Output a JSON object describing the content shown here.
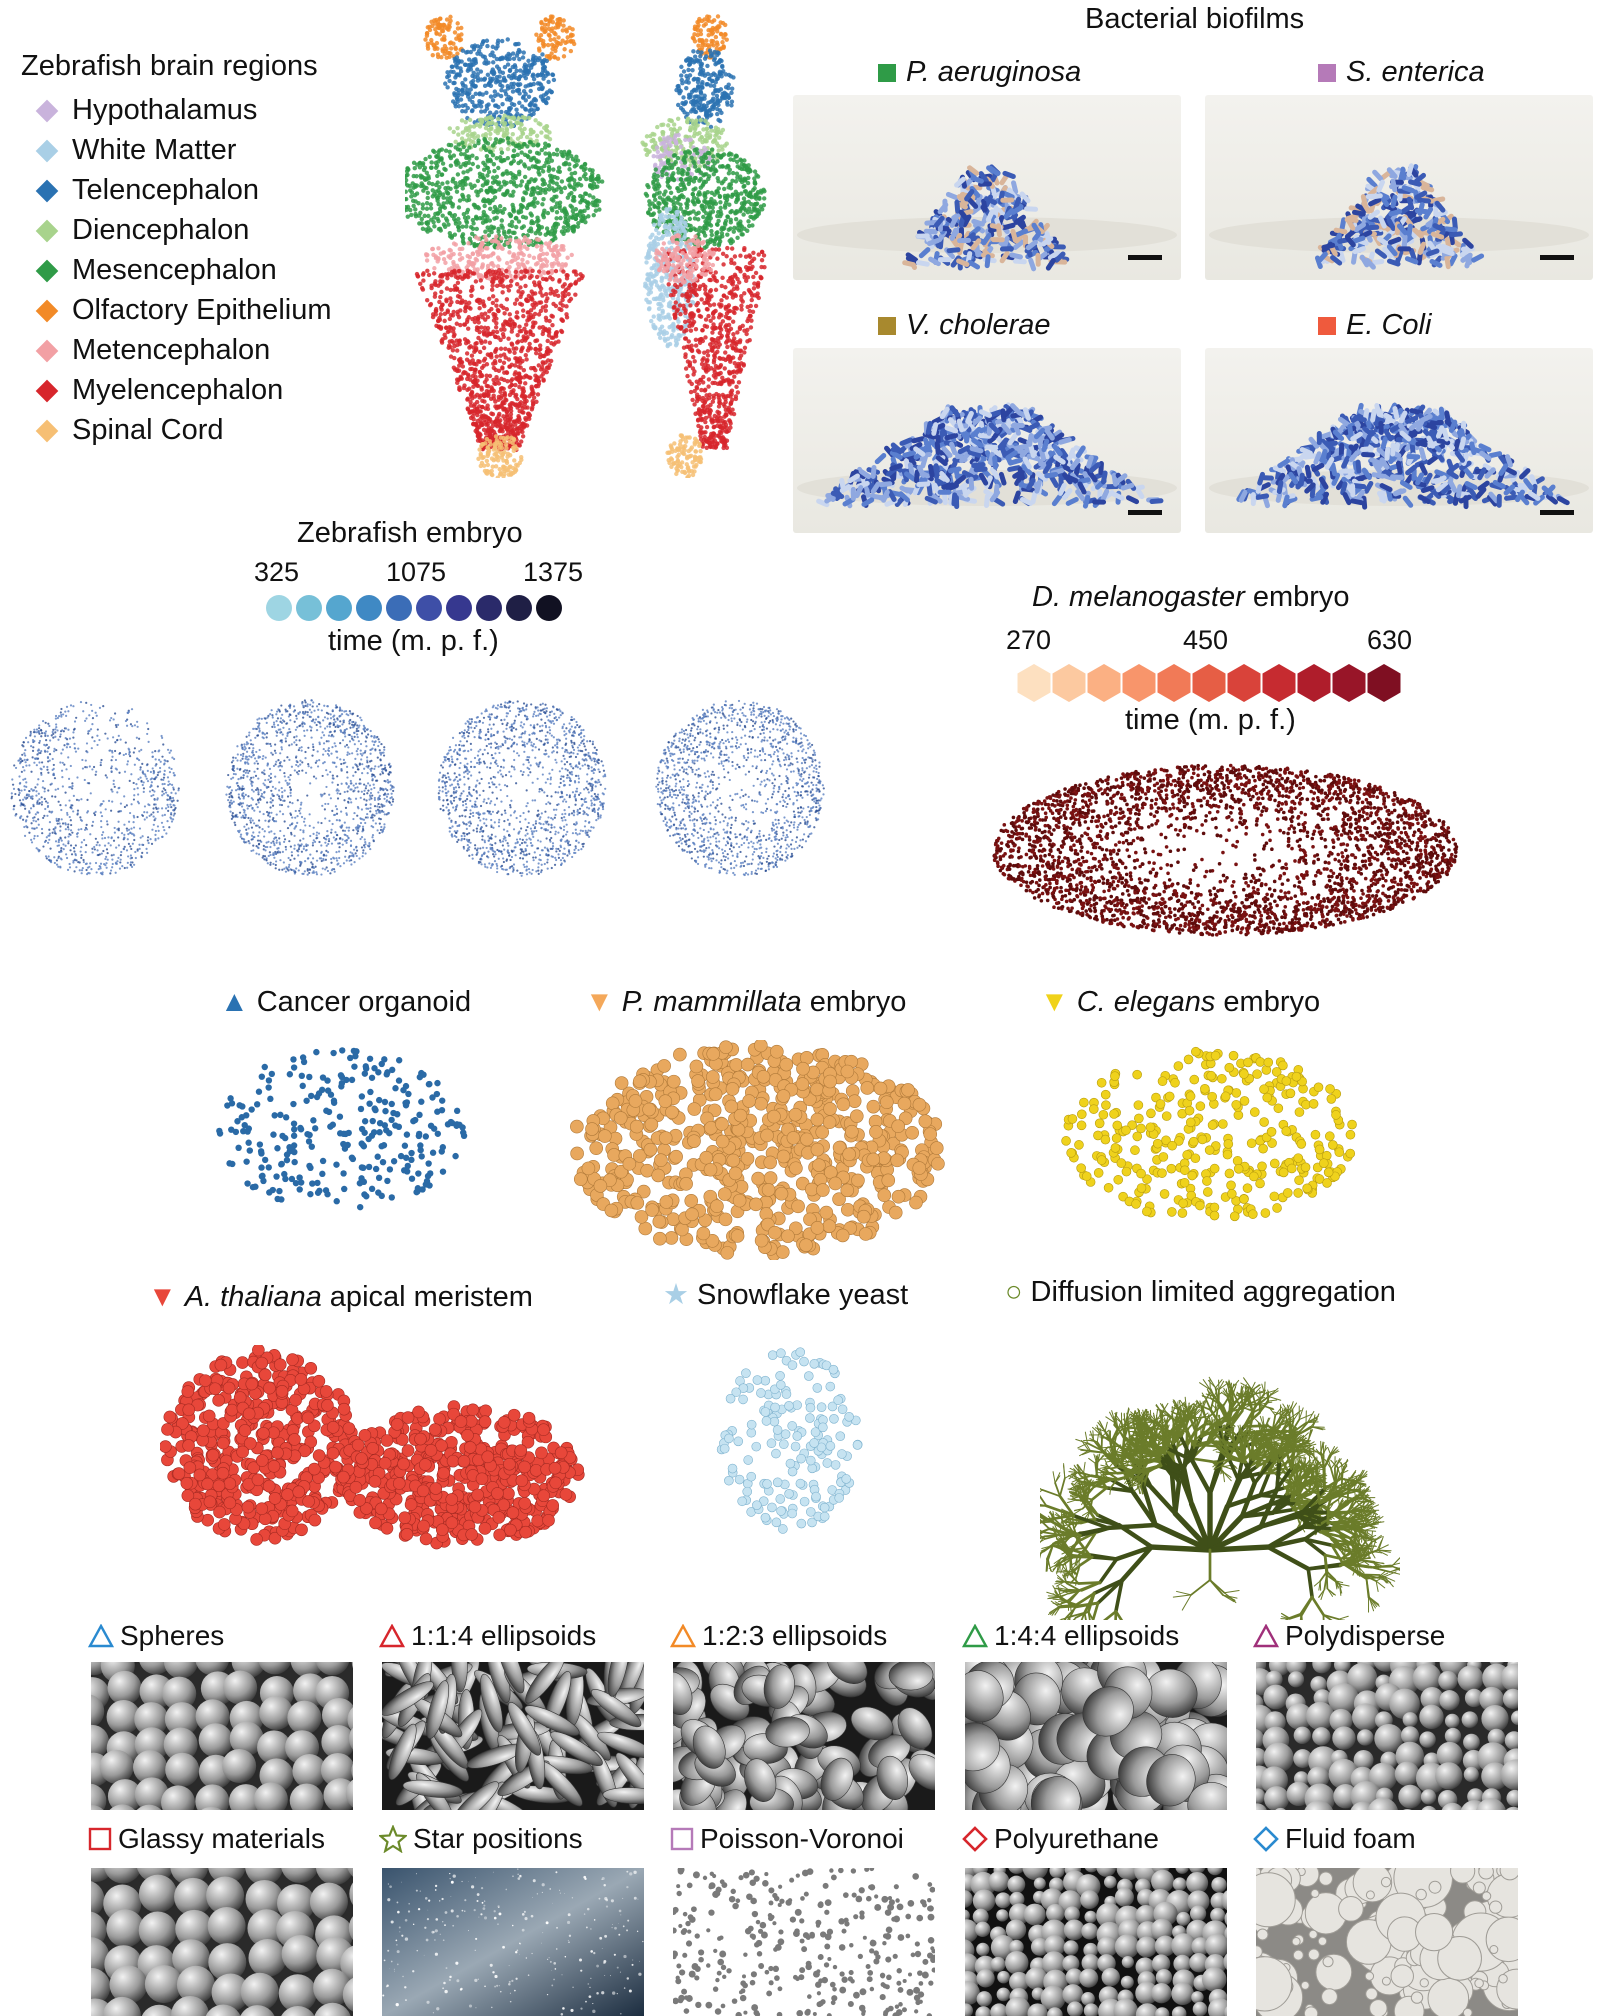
{
  "brain": {
    "legend_title": "Zebrafish brain regions",
    "regions": [
      {
        "label": "Hypothalamus",
        "color": "#c9b3dc"
      },
      {
        "label": "White Matter",
        "color": "#a9cfe6"
      },
      {
        "label": "Telencephalon",
        "color": "#2a72b2"
      },
      {
        "label": "Diencephalon",
        "color": "#a8d38c"
      },
      {
        "label": "Mesencephalon",
        "color": "#2f9b47"
      },
      {
        "label": "Olfactory Epithelium",
        "color": "#f28a27"
      },
      {
        "label": "Metencephalon",
        "color": "#f2a0a4"
      },
      {
        "label": "Myelencephalon",
        "color": "#d7262c"
      },
      {
        "label": "Spinal Cord",
        "color": "#f6bf74"
      }
    ]
  },
  "biofilms": {
    "title": "Bacterial biofilms",
    "panels": [
      {
        "name": "P. aeruginosa",
        "color": "#2f9b47"
      },
      {
        "name": "S. enterica",
        "color": "#b57ab8"
      },
      {
        "name": "V. cholerae",
        "color": "#a8892e"
      },
      {
        "name": "E. Coli",
        "color": "#ef5a3d"
      }
    ]
  },
  "zebrafish_embryo": {
    "title": "Zebrafish embryo",
    "ticks": [
      "325",
      "1075",
      "1375"
    ],
    "time_label": "time (m. p. f.)",
    "colors": [
      "#9ed5e3",
      "#77c0d8",
      "#55a6cf",
      "#3f89c4",
      "#3b6db7",
      "#3e4fa7",
      "#36388f",
      "#2a2a6a",
      "#1f1f45",
      "#111122"
    ]
  },
  "drosophila": {
    "title_italic": "D. melanogaster",
    "title_rest": " embryo",
    "ticks": [
      "270",
      "450",
      "630"
    ],
    "time_label": "time (m. p. f.)",
    "colors": [
      "#fde0c0",
      "#fcc9a0",
      "#fbb083",
      "#f8956b",
      "#f17a57",
      "#e65e45",
      "#d9433a",
      "#c62b30",
      "#af1d2b",
      "#981528",
      "#7f0f22"
    ]
  },
  "organisms": [
    {
      "key": "cancer",
      "marker": "▲",
      "color": "#2a72b2",
      "label_italic": "",
      "label_rest": "Cancer organoid"
    },
    {
      "key": "mammillata",
      "marker": "▼",
      "color": "#f4a85a",
      "label_italic": "P. mammillata",
      "label_rest": " embryo"
    },
    {
      "key": "elegans",
      "marker": "▼",
      "color": "#f0d21a",
      "label_italic": "C. elegans",
      "label_rest": " embryo"
    },
    {
      "key": "thaliana",
      "marker": "▼",
      "color": "#e8473a",
      "label_italic": "A. thaliana",
      "label_rest": " apical meristem"
    },
    {
      "key": "yeast",
      "marker": "★",
      "color": "#a9cfe6",
      "label_italic": "",
      "label_rest": "Snowflake yeast"
    },
    {
      "key": "dla",
      "marker": "○",
      "color": "#6b8a2a",
      "label_italic": "",
      "label_rest": "Diffusion limited aggregation"
    }
  ],
  "materials": [
    {
      "label": "Spheres",
      "marker": "triangle",
      "color": "#2a8ad0"
    },
    {
      "label": "1:1:4 ellipsoids",
      "marker": "triangle",
      "color": "#d7262c"
    },
    {
      "label": "1:2:3 ellipsoids",
      "marker": "triangle",
      "color": "#f28a27"
    },
    {
      "label": "1:4:4 ellipsoids",
      "marker": "triangle",
      "color": "#2f9b47"
    },
    {
      "label": "Polydisperse",
      "marker": "triangle",
      "color": "#a0307a"
    },
    {
      "label": "Glassy materials",
      "marker": "square",
      "color": "#d7262c"
    },
    {
      "label": "Star positions",
      "marker": "star",
      "color": "#6b8a2a"
    },
    {
      "label": "Poisson-Voronoi",
      "marker": "square",
      "color": "#b57ab8"
    },
    {
      "label": "Polyurethane",
      "marker": "diamond",
      "color": "#d7262c"
    },
    {
      "label": "Fluid foam",
      "marker": "diamond",
      "color": "#2a8ad0"
    }
  ]
}
